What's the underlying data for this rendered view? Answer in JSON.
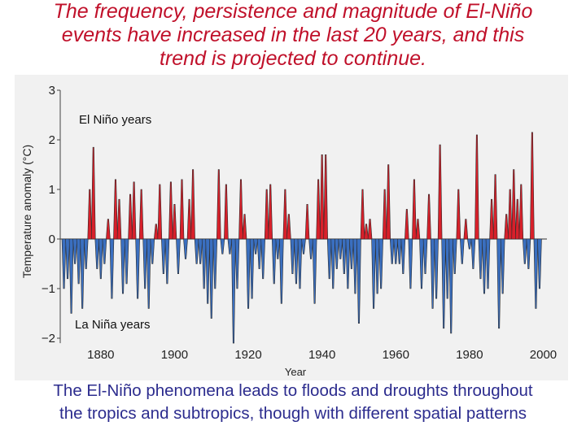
{
  "title": {
    "line1": "The frequency, persistence and magnitude of El-Niño",
    "line2": "events have increased in the last 20 years, and this",
    "line3": "trend is projected to continue."
  },
  "caption": {
    "line1": "The El-Niño phenomena leads to floods and droughts throughout",
    "line2": "the tropics and subtropics, though with different spatial patterns"
  },
  "colors": {
    "positive": "#d8202a",
    "negative": "#3a6fc0",
    "title": "#c0102a",
    "caption": "#2c2c8e"
  },
  "chart_data": {
    "type": "area",
    "title": "",
    "xlabel": "Year",
    "ylabel": "Temperature anomaly  (°C)",
    "xlim": [
      1869,
      2001
    ],
    "ylim": [
      -2.1,
      3.0
    ],
    "x_ticks": [
      "1880",
      "1900",
      "1920",
      "1940",
      "1960",
      "1980",
      "2000"
    ],
    "y_ticks": [
      "3",
      "2",
      "1",
      "0",
      "−1",
      "−2"
    ],
    "annotations": {
      "el_nino": "El Niño years",
      "la_nina": "La Niña years"
    },
    "series": [
      {
        "name": "Temperature anomaly",
        "x": [
          1870,
          1871,
          1872,
          1873,
          1874,
          1875,
          1876,
          1877,
          1878,
          1879,
          1880,
          1881,
          1882,
          1883,
          1884,
          1885,
          1886,
          1887,
          1888,
          1889,
          1890,
          1891,
          1892,
          1893,
          1894,
          1895,
          1896,
          1897,
          1898,
          1899,
          1900,
          1901,
          1902,
          1903,
          1904,
          1905,
          1906,
          1907,
          1908,
          1909,
          1910,
          1911,
          1912,
          1913,
          1914,
          1915,
          1916,
          1917,
          1918,
          1919,
          1920,
          1921,
          1922,
          1923,
          1924,
          1925,
          1926,
          1927,
          1928,
          1929,
          1930,
          1931,
          1932,
          1933,
          1934,
          1935,
          1936,
          1937,
          1938,
          1939,
          1940,
          1941,
          1942,
          1943,
          1944,
          1945,
          1946,
          1947,
          1948,
          1949,
          1950,
          1951,
          1952,
          1953,
          1954,
          1955,
          1956,
          1957,
          1958,
          1959,
          1960,
          1961,
          1962,
          1963,
          1964,
          1965,
          1966,
          1967,
          1968,
          1969,
          1970,
          1971,
          1972,
          1973,
          1974,
          1975,
          1976,
          1977,
          1978,
          1979,
          1980,
          1981,
          1982,
          1983,
          1984,
          1985,
          1986,
          1987,
          1988,
          1989,
          1990,
          1991,
          1992,
          1993,
          1994,
          1995,
          1996,
          1997,
          1998,
          1999
        ],
        "values": [
          -1.0,
          -0.8,
          -1.5,
          -0.5,
          -0.9,
          -1.4,
          -0.6,
          1.0,
          1.85,
          -0.6,
          -0.8,
          -0.5,
          0.4,
          -1.2,
          1.2,
          0.8,
          -1.1,
          -0.9,
          0.9,
          1.15,
          -1.2,
          1.0,
          -1.0,
          -1.4,
          -0.5,
          0.3,
          1.1,
          -0.7,
          -0.9,
          1.15,
          0.7,
          -0.7,
          1.2,
          -0.4,
          0.8,
          1.4,
          -0.5,
          -0.5,
          -1.0,
          -1.3,
          -1.6,
          -1.0,
          1.4,
          -0.3,
          1.1,
          -0.3,
          -2.1,
          -1.0,
          1.2,
          0.5,
          -1.4,
          -1.2,
          -0.3,
          -0.6,
          -0.8,
          1.0,
          1.1,
          -0.9,
          -0.4,
          -1.3,
          1.0,
          0.5,
          -0.7,
          -0.9,
          -1.0,
          -0.3,
          0.7,
          -0.4,
          -1.3,
          1.2,
          1.7,
          1.7,
          -0.8,
          -1.0,
          -0.6,
          -0.4,
          -0.7,
          -1.0,
          -0.6,
          -1.1,
          -1.7,
          1.0,
          0.3,
          0.4,
          -1.4,
          -1.1,
          -1.0,
          1.0,
          1.5,
          -0.5,
          -0.5,
          -0.5,
          -0.7,
          0.6,
          -1.0,
          1.2,
          0.4,
          -1.0,
          -0.7,
          0.9,
          -1.4,
          -1.2,
          1.9,
          -1.8,
          -1.2,
          -1.9,
          -0.7,
          1.0,
          -0.5,
          0.4,
          -0.2,
          -0.6,
          2.1,
          -0.8,
          -1.1,
          -1.0,
          0.8,
          1.3,
          -1.8,
          -1.1,
          0.5,
          1.0,
          1.4,
          0.8,
          1.1,
          -0.5,
          -0.6,
          2.15,
          -1.4,
          -1.0
        ]
      }
    ]
  }
}
